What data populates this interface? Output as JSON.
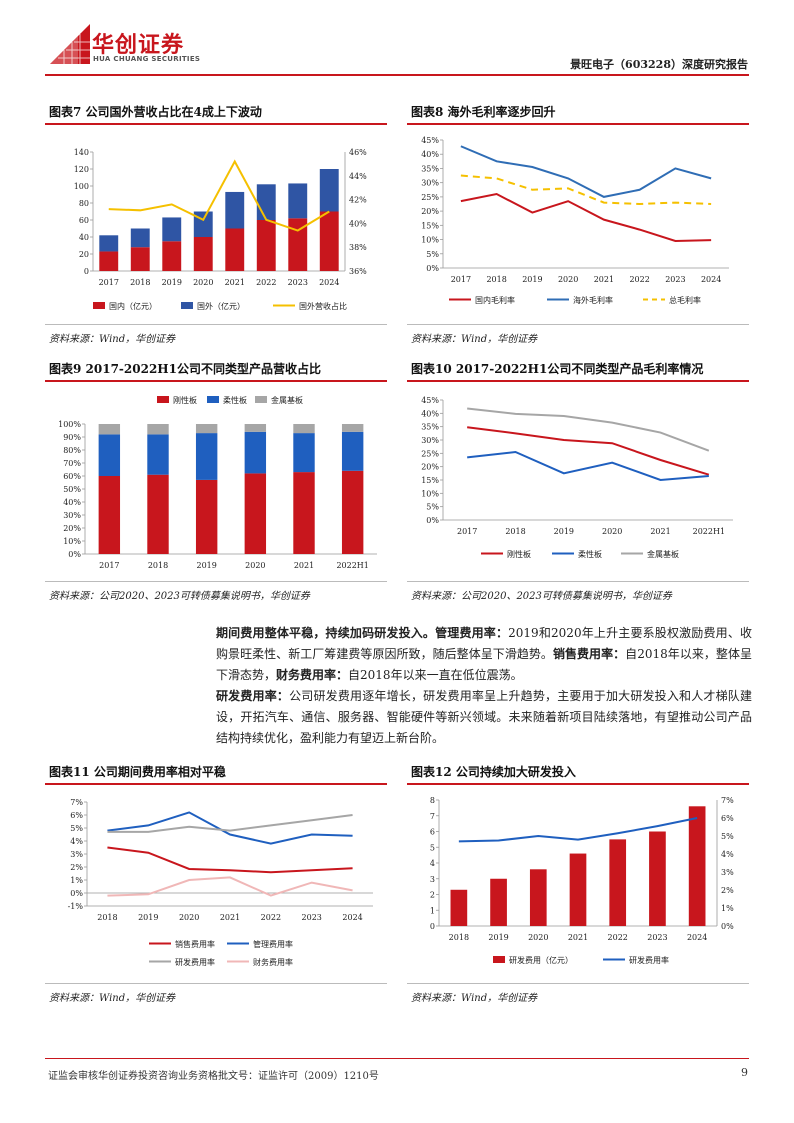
{
  "header": {
    "logo_cn": "华创证券",
    "logo_en": "HUA CHUANG SECURITIES",
    "report_title": "景旺电子（603228）深度研究报告",
    "brand_color": "#c8161d"
  },
  "figures": [
    {
      "title": "图表7  公司国外营收占比在4成上下波动",
      "source": "资料来源：Wind，华创证券"
    },
    {
      "title": "图表8  海外毛利率逐步回升",
      "source": "资料来源：Wind，华创证券"
    },
    {
      "title": "图表9  2017-2022H1公司不同类型产品营收占比",
      "source": "资料来源：公司2020、2023可转债募集说明书，华创证券"
    },
    {
      "title": "图表10  2017-2022H1公司不同类型产品毛利率情况",
      "source": "资料来源：公司2020、2023可转债募集说明书，华创证券"
    },
    {
      "title": "图表11  公司期间费用率相对平稳",
      "source": "资料来源：Wind，华创证券"
    },
    {
      "title": "图表12  公司持续加大研发投入",
      "source": "资料来源：Wind，华创证券"
    }
  ],
  "paragraph": {
    "h1": "期间费用整体平稳，持续加码研发投入。",
    "h2": "管理费用率：",
    "t2": "2019和2020年上升主要系股权激励费用、收购景旺柔性、新工厂筹建费等原因所致，随后整体呈下滑趋势。",
    "h3": "销售费用率：",
    "t3": "自2018年以来，整体呈下滑态势，",
    "h4": "财务费用率：",
    "t4": "自2018年以来一直在低位震荡。",
    "h5": "研发费用率：",
    "t5": "公司研发费用逐年增长，研发费用率呈上升趋势，主要用于加大研发投入和人才梯队建设，开拓汽车、通信、服务器、智能硬件等新兴领域。未来随着新项目陆续落地，有望推动公司产品结构持续优化，盈利能力有望迈上新台阶。"
  },
  "footer": {
    "license": "证监会审核华创证券投资咨询业务资格批文号：证监许可（2009）1210号",
    "page": "9"
  },
  "chart_data": [
    {
      "type": "bar",
      "stacked": true,
      "categories": [
        "2017",
        "2018",
        "2019",
        "2020",
        "2021",
        "2022",
        "2023",
        "2024"
      ],
      "series": [
        {
          "name": "国内（亿元）",
          "values": [
            23,
            28,
            35,
            40,
            50,
            60,
            62,
            70
          ],
          "color": "#c8161d"
        },
        {
          "name": "国外（亿元）",
          "values": [
            19,
            22,
            28,
            30,
            43,
            42,
            41,
            50
          ],
          "color": "#2f55a4"
        },
        {
          "name": "国外营收占比",
          "axis": "right",
          "values": [
            41.2,
            41.1,
            41.6,
            40.3,
            45.2,
            40.3,
            39.4,
            41.0
          ],
          "color": "#f5c000"
        }
      ],
      "yticks_left": [
        "0",
        "20",
        "40",
        "60",
        "80",
        "100",
        "120",
        "140"
      ],
      "yticks_right": [
        "36%",
        "38%",
        "40%",
        "42%",
        "44%",
        "46%"
      ],
      "ylim": [
        0,
        140
      ],
      "ylim_right": [
        36,
        46
      ],
      "legend": "bottom"
    },
    {
      "type": "line",
      "categories": [
        "2017",
        "2018",
        "2019",
        "2020",
        "2021",
        "2022",
        "2023",
        "2024"
      ],
      "series": [
        {
          "name": "国内毛利率",
          "values": [
            23.5,
            26,
            19.5,
            23.5,
            17,
            13.5,
            9.5,
            9.8
          ],
          "color": "#c8161d"
        },
        {
          "name": "海外毛利率",
          "values": [
            42.8,
            37.5,
            35.5,
            31.5,
            25,
            27.5,
            35,
            31.5
          ],
          "color": "#2f6db5"
        },
        {
          "name": "总毛利率",
          "values": [
            32.5,
            31.5,
            27.5,
            28,
            23,
            22.5,
            23,
            22.5
          ],
          "color": "#f5c000",
          "dashed": true
        }
      ],
      "yticks": [
        "0%",
        "5%",
        "10%",
        "15%",
        "20%",
        "25%",
        "30%",
        "35%",
        "40%",
        "45%"
      ],
      "ylim": [
        0,
        45
      ],
      "legend": "bottom"
    },
    {
      "type": "bar",
      "stacked": true,
      "categories": [
        "2017",
        "2018",
        "2019",
        "2020",
        "2021",
        "2022H1"
      ],
      "series": [
        {
          "name": "刚性板",
          "values": [
            60,
            61,
            57,
            62,
            63,
            64
          ],
          "color": "#c8161d"
        },
        {
          "name": "柔性板",
          "values": [
            32,
            31,
            36,
            32,
            30,
            30
          ],
          "color": "#1f5fbf"
        },
        {
          "name": "金属基板",
          "values": [
            8,
            8,
            7,
            6,
            7,
            6
          ],
          "color": "#a6a6a6"
        }
      ],
      "yticks": [
        "0%",
        "10%",
        "20%",
        "30%",
        "40%",
        "50%",
        "60%",
        "70%",
        "80%",
        "90%",
        "100%"
      ],
      "ylim": [
        0,
        100
      ],
      "legend": "top"
    },
    {
      "type": "line",
      "categories": [
        "2017",
        "2018",
        "2019",
        "2020",
        "2021",
        "2022H1"
      ],
      "series": [
        {
          "name": "刚性板",
          "values": [
            34.8,
            32.5,
            30,
            28.8,
            22.5,
            17
          ],
          "color": "#c8161d"
        },
        {
          "name": "柔性板",
          "values": [
            23.5,
            25.5,
            17.5,
            21.5,
            15,
            16.5
          ],
          "color": "#1f5fbf"
        },
        {
          "name": "金属基板",
          "values": [
            41.8,
            39.8,
            39,
            36.5,
            32.8,
            26
          ],
          "color": "#a6a6a6"
        }
      ],
      "yticks": [
        "0%",
        "5%",
        "10%",
        "15%",
        "20%",
        "25%",
        "30%",
        "35%",
        "40%",
        "45%"
      ],
      "ylim": [
        0,
        45
      ],
      "legend": "bottom"
    },
    {
      "type": "line",
      "categories": [
        "2018",
        "2019",
        "2020",
        "2021",
        "2022",
        "2023",
        "2024"
      ],
      "series": [
        {
          "name": "销售费用率",
          "values": [
            3.5,
            3.1,
            1.85,
            1.75,
            1.6,
            1.75,
            1.9
          ],
          "color": "#c8161d"
        },
        {
          "name": "管理费用率",
          "values": [
            4.8,
            5.2,
            6.2,
            4.5,
            3.8,
            4.5,
            4.4
          ],
          "color": "#1f5fbf"
        },
        {
          "name": "研发费用率",
          "values": [
            4.7,
            4.7,
            5.1,
            4.8,
            5.2,
            5.6,
            6.0
          ],
          "color": "#a6a6a6"
        },
        {
          "name": "财务费用率",
          "values": [
            -0.2,
            -0.1,
            1.0,
            1.2,
            -0.2,
            0.8,
            0.2
          ],
          "color": "#f0b7b7"
        }
      ],
      "yticks": [
        "-1%",
        "0%",
        "1%",
        "2%",
        "3%",
        "4%",
        "5%",
        "6%",
        "7%"
      ],
      "ylim": [
        -1,
        7
      ],
      "legend": "bottom"
    },
    {
      "type": "bar",
      "categories": [
        "2018",
        "2019",
        "2020",
        "2021",
        "2022",
        "2023",
        "2024"
      ],
      "series": [
        {
          "name": "研发费用（亿元）",
          "values": [
            2.3,
            3.0,
            3.6,
            4.6,
            5.5,
            6.0,
            7.6
          ],
          "color": "#c8161d"
        },
        {
          "name": "研发费用率",
          "axis": "right",
          "values": [
            4.7,
            4.75,
            5.0,
            4.8,
            5.15,
            5.55,
            6.0
          ],
          "color": "#1f5fbf"
        }
      ],
      "yticks_left": [
        "0",
        "1",
        "2",
        "3",
        "4",
        "5",
        "6",
        "7",
        "8"
      ],
      "yticks_right": [
        "0%",
        "1%",
        "2%",
        "3%",
        "4%",
        "5%",
        "6%",
        "7%"
      ],
      "ylim": [
        0,
        8
      ],
      "ylim_right": [
        0,
        7
      ],
      "legend": "bottom"
    }
  ]
}
